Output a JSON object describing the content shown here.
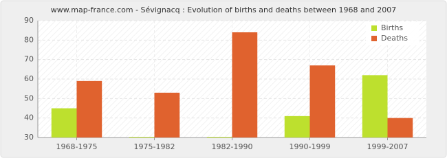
{
  "chart_data": {
    "type": "bar",
    "title": "www.map-france.com - Sévignacq : Evolution of births and deaths between 1968 and 2007",
    "categories": [
      "1968-1975",
      "1975-1982",
      "1982-1990",
      "1990-1999",
      "1999-2007"
    ],
    "series": [
      {
        "name": "Births",
        "color": "#bde02e",
        "values": [
          45,
          30,
          30,
          41,
          62
        ]
      },
      {
        "name": "Deaths",
        "color": "#e0622e",
        "values": [
          59,
          53,
          84,
          67,
          40
        ]
      }
    ],
    "ylim": [
      30,
      90
    ],
    "yticks": [
      30,
      40,
      50,
      60,
      70,
      80,
      90
    ],
    "grid": true,
    "legend": "top-right"
  }
}
